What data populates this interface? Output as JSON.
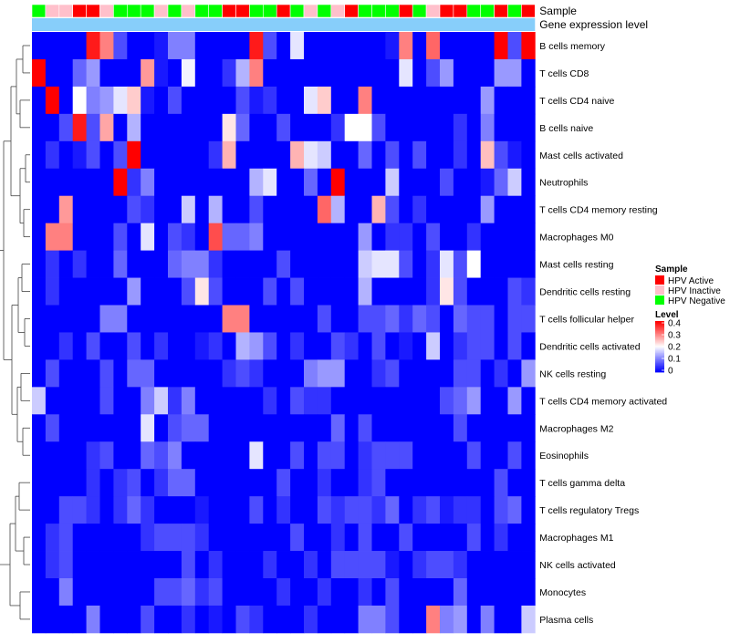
{
  "chart_data": {
    "type": "heatmap",
    "annotation_labels": [
      "Sample",
      "Gene expression level"
    ],
    "legend_sample_title": "Sample",
    "legend_level_title": "Level",
    "sample_groups": [
      {
        "name": "HPV Active",
        "color": "#FF0000"
      },
      {
        "name": "HPV Inactive",
        "color": "#FFC0CB"
      },
      {
        "name": "HPV Negative",
        "color": "#00FF00"
      }
    ],
    "color_scale": {
      "low": "#0000FF",
      "mid": "#FFFFFF",
      "high": "#FF0000",
      "range": [
        0,
        0.4
      ]
    },
    "level_ticks": [
      "0.4",
      "0.3",
      "0.2",
      "0.1",
      "0"
    ],
    "gene_expression_color": "#87CEFA",
    "sample_annotation": [
      "HPV Negative",
      "HPV Inactive",
      "HPV Inactive",
      "HPV Active",
      "HPV Active",
      "HPV Inactive",
      "HPV Negative",
      "HPV Negative",
      "HPV Negative",
      "HPV Inactive",
      "HPV Negative",
      "HPV Inactive",
      "HPV Negative",
      "HPV Negative",
      "HPV Active",
      "HPV Active",
      "HPV Negative",
      "HPV Negative",
      "HPV Active",
      "HPV Negative",
      "HPV Inactive",
      "HPV Negative",
      "HPV Inactive",
      "HPV Active",
      "HPV Negative",
      "HPV Negative",
      "HPV Negative",
      "HPV Active",
      "HPV Negative",
      "HPV Inactive",
      "HPV Active",
      "HPV Active",
      "HPV Negative",
      "HPV Negative",
      "HPV Active",
      "HPV Negative",
      "HPV Active"
    ],
    "rows": [
      "B cells memory",
      "T cells CD8",
      "T cells CD4 naive",
      "B cells naive",
      "Mast cells activated",
      "Neutrophils",
      "T cells CD4 memory resting",
      "Macrophages M0",
      "Mast cells resting",
      "Dendritic cells resting",
      "T cells follicular helper",
      "Dendritic cells activated",
      "NK cells resting",
      "T cells CD4 memory activated",
      "Macrophages M2",
      "Eosinophils",
      "T cells gamma delta",
      "T cells regulatory  Tregs",
      "Macrophages M1",
      "NK cells activated",
      "Monocytes",
      "Plasma cells"
    ],
    "values": [
      [
        0,
        0,
        0,
        0,
        0.38,
        0.3,
        0.06,
        0,
        0,
        0.02,
        0.1,
        0.1,
        0,
        0,
        0,
        0,
        0.38,
        0.06,
        0,
        0.18,
        0,
        0,
        0,
        0,
        0,
        0,
        0.02,
        0.3,
        0,
        0.32,
        0,
        0,
        0,
        0,
        0.4,
        0.06,
        0.4
      ],
      [
        0.4,
        0,
        0,
        0.08,
        0.12,
        0,
        0,
        0,
        0.28,
        0.02,
        0,
        0.19,
        0,
        0,
        0.04,
        0.14,
        0.3,
        0,
        0,
        0,
        0,
        0,
        0,
        0,
        0,
        0,
        0,
        0.18,
        0,
        0.06,
        0.12,
        0,
        0,
        0,
        0.12,
        0.12,
        0
      ],
      [
        0,
        0.4,
        0,
        0.2,
        0.1,
        0.12,
        0.18,
        0.24,
        0.02,
        0,
        0.06,
        0,
        0,
        0,
        0,
        0.06,
        0.02,
        0.04,
        0,
        0,
        0.18,
        0.24,
        0,
        0,
        0.3,
        0,
        0,
        0,
        0,
        0,
        0,
        0,
        0,
        0.12,
        0,
        0,
        0
      ],
      [
        0,
        0,
        0.06,
        0.38,
        0.06,
        0.27,
        0,
        0.14,
        0,
        0,
        0,
        0,
        0,
        0,
        0.22,
        0.08,
        0,
        0,
        0.06,
        0,
        0,
        0,
        0.04,
        0.2,
        0.2,
        0.06,
        0,
        0,
        0,
        0,
        0,
        0.04,
        0,
        0.1,
        0,
        0,
        0
      ],
      [
        0,
        0.04,
        0,
        0.02,
        0.06,
        0,
        0.06,
        0.4,
        0,
        0,
        0,
        0,
        0,
        0.04,
        0.26,
        0,
        0,
        0,
        0,
        0.26,
        0.18,
        0.16,
        0,
        0,
        0.08,
        0,
        0.06,
        0,
        0.06,
        0,
        0,
        0.04,
        0,
        0.25,
        0.06,
        0.02,
        0
      ],
      [
        0,
        0,
        0,
        0,
        0,
        0,
        0.4,
        0.04,
        0.1,
        0,
        0,
        0,
        0,
        0,
        0,
        0,
        0.14,
        0.18,
        0,
        0,
        0.08,
        0,
        0.4,
        0,
        0,
        0,
        0.16,
        0,
        0,
        0,
        0.06,
        0,
        0,
        0.02,
        0.08,
        0.16,
        0
      ],
      [
        0,
        0,
        0.28,
        0,
        0,
        0,
        0,
        0.06,
        0.04,
        0,
        0,
        0.16,
        0,
        0.14,
        0,
        0,
        0.06,
        0,
        0,
        0,
        0,
        0.32,
        0.14,
        0,
        0,
        0.26,
        0.06,
        0,
        0.04,
        0,
        0,
        0,
        0,
        0.12,
        0,
        0,
        0
      ],
      [
        0,
        0.3,
        0.3,
        0,
        0,
        0,
        0.06,
        0,
        0.18,
        0,
        0.06,
        0.04,
        0,
        0.34,
        0.08,
        0.08,
        0.1,
        0,
        0,
        0,
        0,
        0,
        0,
        0,
        0.12,
        0,
        0.04,
        0.04,
        0,
        0.06,
        0,
        0,
        0.04,
        0,
        0,
        0,
        0
      ],
      [
        0,
        0.04,
        0,
        0.04,
        0,
        0,
        0.08,
        0,
        0,
        0,
        0.08,
        0.1,
        0.1,
        0.04,
        0,
        0,
        0,
        0,
        0.06,
        0,
        0,
        0,
        0,
        0,
        0.16,
        0.18,
        0.18,
        0.06,
        0,
        0.04,
        0.18,
        0.06,
        0.2,
        0,
        0,
        0,
        0
      ],
      [
        0,
        0.04,
        0,
        0,
        0,
        0,
        0,
        0.12,
        0,
        0,
        0,
        0.06,
        0.22,
        0.06,
        0,
        0,
        0,
        0.06,
        0,
        0.06,
        0,
        0,
        0,
        0,
        0.14,
        0,
        0,
        0,
        0,
        0.04,
        0.22,
        0.06,
        0,
        0,
        0,
        0.06,
        0.04
      ],
      [
        0,
        0,
        0,
        0,
        0,
        0.1,
        0.1,
        0,
        0,
        0,
        0,
        0,
        0,
        0,
        0.3,
        0.3,
        0,
        0,
        0,
        0,
        0,
        0.06,
        0,
        0,
        0.06,
        0.06,
        0.08,
        0.04,
        0.08,
        0.06,
        0,
        0.08,
        0.06,
        0.06,
        0,
        0.06,
        0.06
      ],
      [
        0,
        0,
        0.04,
        0,
        0.06,
        0,
        0,
        0.06,
        0,
        0.04,
        0,
        0,
        0.02,
        0.04,
        0,
        0.14,
        0.12,
        0.06,
        0,
        0.04,
        0,
        0,
        0.06,
        0.04,
        0,
        0.06,
        0,
        0.02,
        0,
        0.16,
        0,
        0.04,
        0.06,
        0.06,
        0,
        0.06,
        0
      ],
      [
        0,
        0.06,
        0,
        0,
        0,
        0.06,
        0,
        0.08,
        0.08,
        0,
        0,
        0,
        0,
        0,
        0.04,
        0.06,
        0.04,
        0,
        0,
        0,
        0.1,
        0.12,
        0.12,
        0,
        0,
        0.04,
        0.06,
        0,
        0,
        0,
        0,
        0.06,
        0.06,
        0,
        0.04,
        0,
        0.12
      ],
      [
        0.16,
        0,
        0,
        0,
        0,
        0.06,
        0,
        0,
        0.1,
        0.16,
        0.04,
        0.1,
        0,
        0,
        0,
        0,
        0,
        0.04,
        0,
        0.06,
        0.04,
        0.04,
        0,
        0,
        0,
        0,
        0,
        0,
        0,
        0,
        0.06,
        0.08,
        0.12,
        0,
        0,
        0.12,
        0
      ],
      [
        0,
        0.06,
        0,
        0,
        0,
        0,
        0,
        0,
        0.18,
        0,
        0.06,
        0.08,
        0.08,
        0,
        0,
        0,
        0,
        0,
        0,
        0,
        0,
        0,
        0.08,
        0,
        0.06,
        0,
        0,
        0,
        0,
        0,
        0,
        0.06,
        0,
        0,
        0,
        0,
        0
      ],
      [
        0,
        0,
        0,
        0,
        0.04,
        0.06,
        0,
        0,
        0.08,
        0.06,
        0.1,
        0,
        0,
        0,
        0,
        0,
        0.18,
        0,
        0,
        0.06,
        0,
        0.06,
        0.06,
        0,
        0.04,
        0.06,
        0.06,
        0.06,
        0,
        0,
        0,
        0,
        0.06,
        0,
        0,
        0.06,
        0
      ],
      [
        0,
        0,
        0,
        0,
        0.04,
        0,
        0.04,
        0.06,
        0,
        0.04,
        0.08,
        0.08,
        0,
        0,
        0,
        0,
        0,
        0,
        0.06,
        0,
        0,
        0.04,
        0,
        0,
        0.04,
        0.06,
        0,
        0,
        0,
        0,
        0,
        0,
        0,
        0,
        0.06,
        0,
        0
      ],
      [
        0,
        0,
        0.06,
        0.06,
        0.04,
        0,
        0.04,
        0.08,
        0.04,
        0,
        0,
        0,
        0.02,
        0,
        0,
        0,
        0.06,
        0,
        0.04,
        0,
        0,
        0.06,
        0.04,
        0.06,
        0.06,
        0.04,
        0.08,
        0,
        0.04,
        0.06,
        0.02,
        0.04,
        0.04,
        0,
        0.06,
        0.08,
        0
      ],
      [
        0,
        0.04,
        0.06,
        0,
        0,
        0,
        0,
        0,
        0.04,
        0.06,
        0.06,
        0.06,
        0.04,
        0,
        0,
        0,
        0,
        0,
        0,
        0.06,
        0,
        0,
        0.04,
        0,
        0.06,
        0,
        0,
        0.06,
        0,
        0,
        0,
        0,
        0.06,
        0,
        0.04,
        0,
        0
      ],
      [
        0,
        0.04,
        0.06,
        0,
        0,
        0,
        0,
        0,
        0,
        0,
        0,
        0.06,
        0,
        0.04,
        0,
        0,
        0,
        0.04,
        0,
        0,
        0.04,
        0,
        0.06,
        0.06,
        0.06,
        0.06,
        0.02,
        0,
        0.04,
        0.06,
        0.06,
        0.04,
        0,
        0,
        0,
        0,
        0
      ],
      [
        0,
        0,
        0.1,
        0,
        0,
        0,
        0,
        0,
        0,
        0.06,
        0.06,
        0.08,
        0.04,
        0.06,
        0,
        0,
        0,
        0,
        0.04,
        0,
        0,
        0.04,
        0,
        0,
        0.04,
        0,
        0.06,
        0,
        0,
        0,
        0,
        0.08,
        0,
        0,
        0,
        0,
        0
      ],
      [
        0,
        0,
        0,
        0,
        0.1,
        0,
        0,
        0,
        0.06,
        0,
        0,
        0.04,
        0,
        0.02,
        0,
        0.06,
        0.04,
        0,
        0,
        0,
        0.04,
        0,
        0,
        0,
        0.1,
        0.1,
        0.06,
        0,
        0,
        0.3,
        0.1,
        0.12,
        0,
        0.1,
        0,
        0,
        0.16
      ]
    ]
  }
}
